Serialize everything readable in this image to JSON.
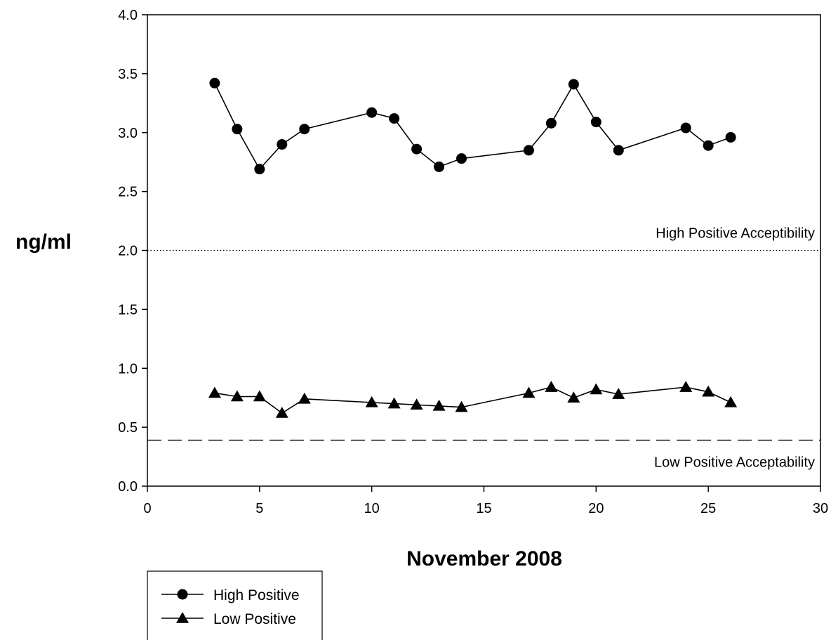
{
  "chart_data": {
    "type": "line",
    "xlabel": "November 2008",
    "ylabel": "ng/ml",
    "xlim": [
      0,
      30
    ],
    "ylim": [
      0,
      4
    ],
    "x_ticks": [
      0,
      5,
      10,
      15,
      20,
      25,
      30
    ],
    "y_ticks": [
      "0.0",
      "0.5",
      "1.0",
      "1.5",
      "2.0",
      "2.5",
      "3.0",
      "3.5",
      "4.0"
    ],
    "grid": false,
    "series": [
      {
        "name": "High Positive",
        "marker": "circle",
        "color": "#000000",
        "x": [
          3,
          4,
          5,
          6,
          7,
          10,
          11,
          12,
          13,
          14,
          17,
          18,
          19,
          20,
          21,
          24,
          25,
          26
        ],
        "y": [
          3.42,
          3.03,
          2.69,
          2.9,
          3.03,
          3.17,
          3.12,
          2.86,
          2.71,
          2.78,
          2.85,
          3.08,
          3.41,
          3.09,
          2.85,
          3.04,
          2.89,
          2.96
        ]
      },
      {
        "name": "Low Positive",
        "marker": "triangle",
        "color": "#000000",
        "x": [
          3,
          4,
          5,
          6,
          7,
          10,
          11,
          12,
          13,
          14,
          17,
          18,
          19,
          20,
          21,
          24,
          25,
          26
        ],
        "y": [
          0.79,
          0.76,
          0.76,
          0.62,
          0.74,
          0.71,
          0.7,
          0.69,
          0.68,
          0.67,
          0.79,
          0.84,
          0.75,
          0.82,
          0.78,
          0.84,
          0.8,
          0.71
        ]
      }
    ],
    "reference_lines": [
      {
        "label": "High Positive Acceptibility",
        "y": 2.0,
        "style": "dotted"
      },
      {
        "label": "Low Positive Acceptability",
        "y": 0.39,
        "style": "dashed"
      }
    ],
    "legend": {
      "position": "bottom-left"
    }
  }
}
